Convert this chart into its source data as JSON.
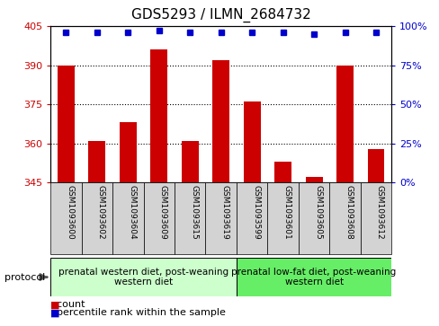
{
  "title": "GDS5293 / ILMN_2684732",
  "samples": [
    "GSM1093600",
    "GSM1093602",
    "GSM1093604",
    "GSM1093609",
    "GSM1093615",
    "GSM1093619",
    "GSM1093599",
    "GSM1093601",
    "GSM1093605",
    "GSM1093608",
    "GSM1093612"
  ],
  "bar_values": [
    390,
    361,
    368,
    396,
    361,
    392,
    376,
    353,
    347,
    390,
    358
  ],
  "percentile_values": [
    96,
    96,
    96,
    97,
    96,
    96,
    96,
    96,
    95,
    96,
    96
  ],
  "bar_color": "#cc0000",
  "dot_color": "#0000cc",
  "ymin": 345,
  "ymax": 405,
  "y_ticks": [
    345,
    360,
    375,
    390,
    405
  ],
  "y2min": 0,
  "y2max": 100,
  "y2_ticks": [
    0,
    25,
    50,
    75,
    100
  ],
  "groups": [
    {
      "label": "prenatal western diet, post-weaning\nwestern diet",
      "start": 0,
      "end": 5,
      "color": "#ccffcc"
    },
    {
      "label": "prenatal low-fat diet, post-weaning\nwestern diet",
      "start": 6,
      "end": 10,
      "color": "#66ee66"
    }
  ],
  "protocol_label": "protocol",
  "legend_count": "count",
  "legend_percentile": "percentile rank within the sample",
  "bar_color_legend": "#cc0000",
  "dot_color_legend": "#0000cc",
  "tick_label_color_left": "#cc0000",
  "tick_label_color_right": "#0000cc",
  "grid_yticks": [
    360,
    375,
    390
  ],
  "sample_box_color": "#d3d3d3",
  "title_fontsize": 11
}
